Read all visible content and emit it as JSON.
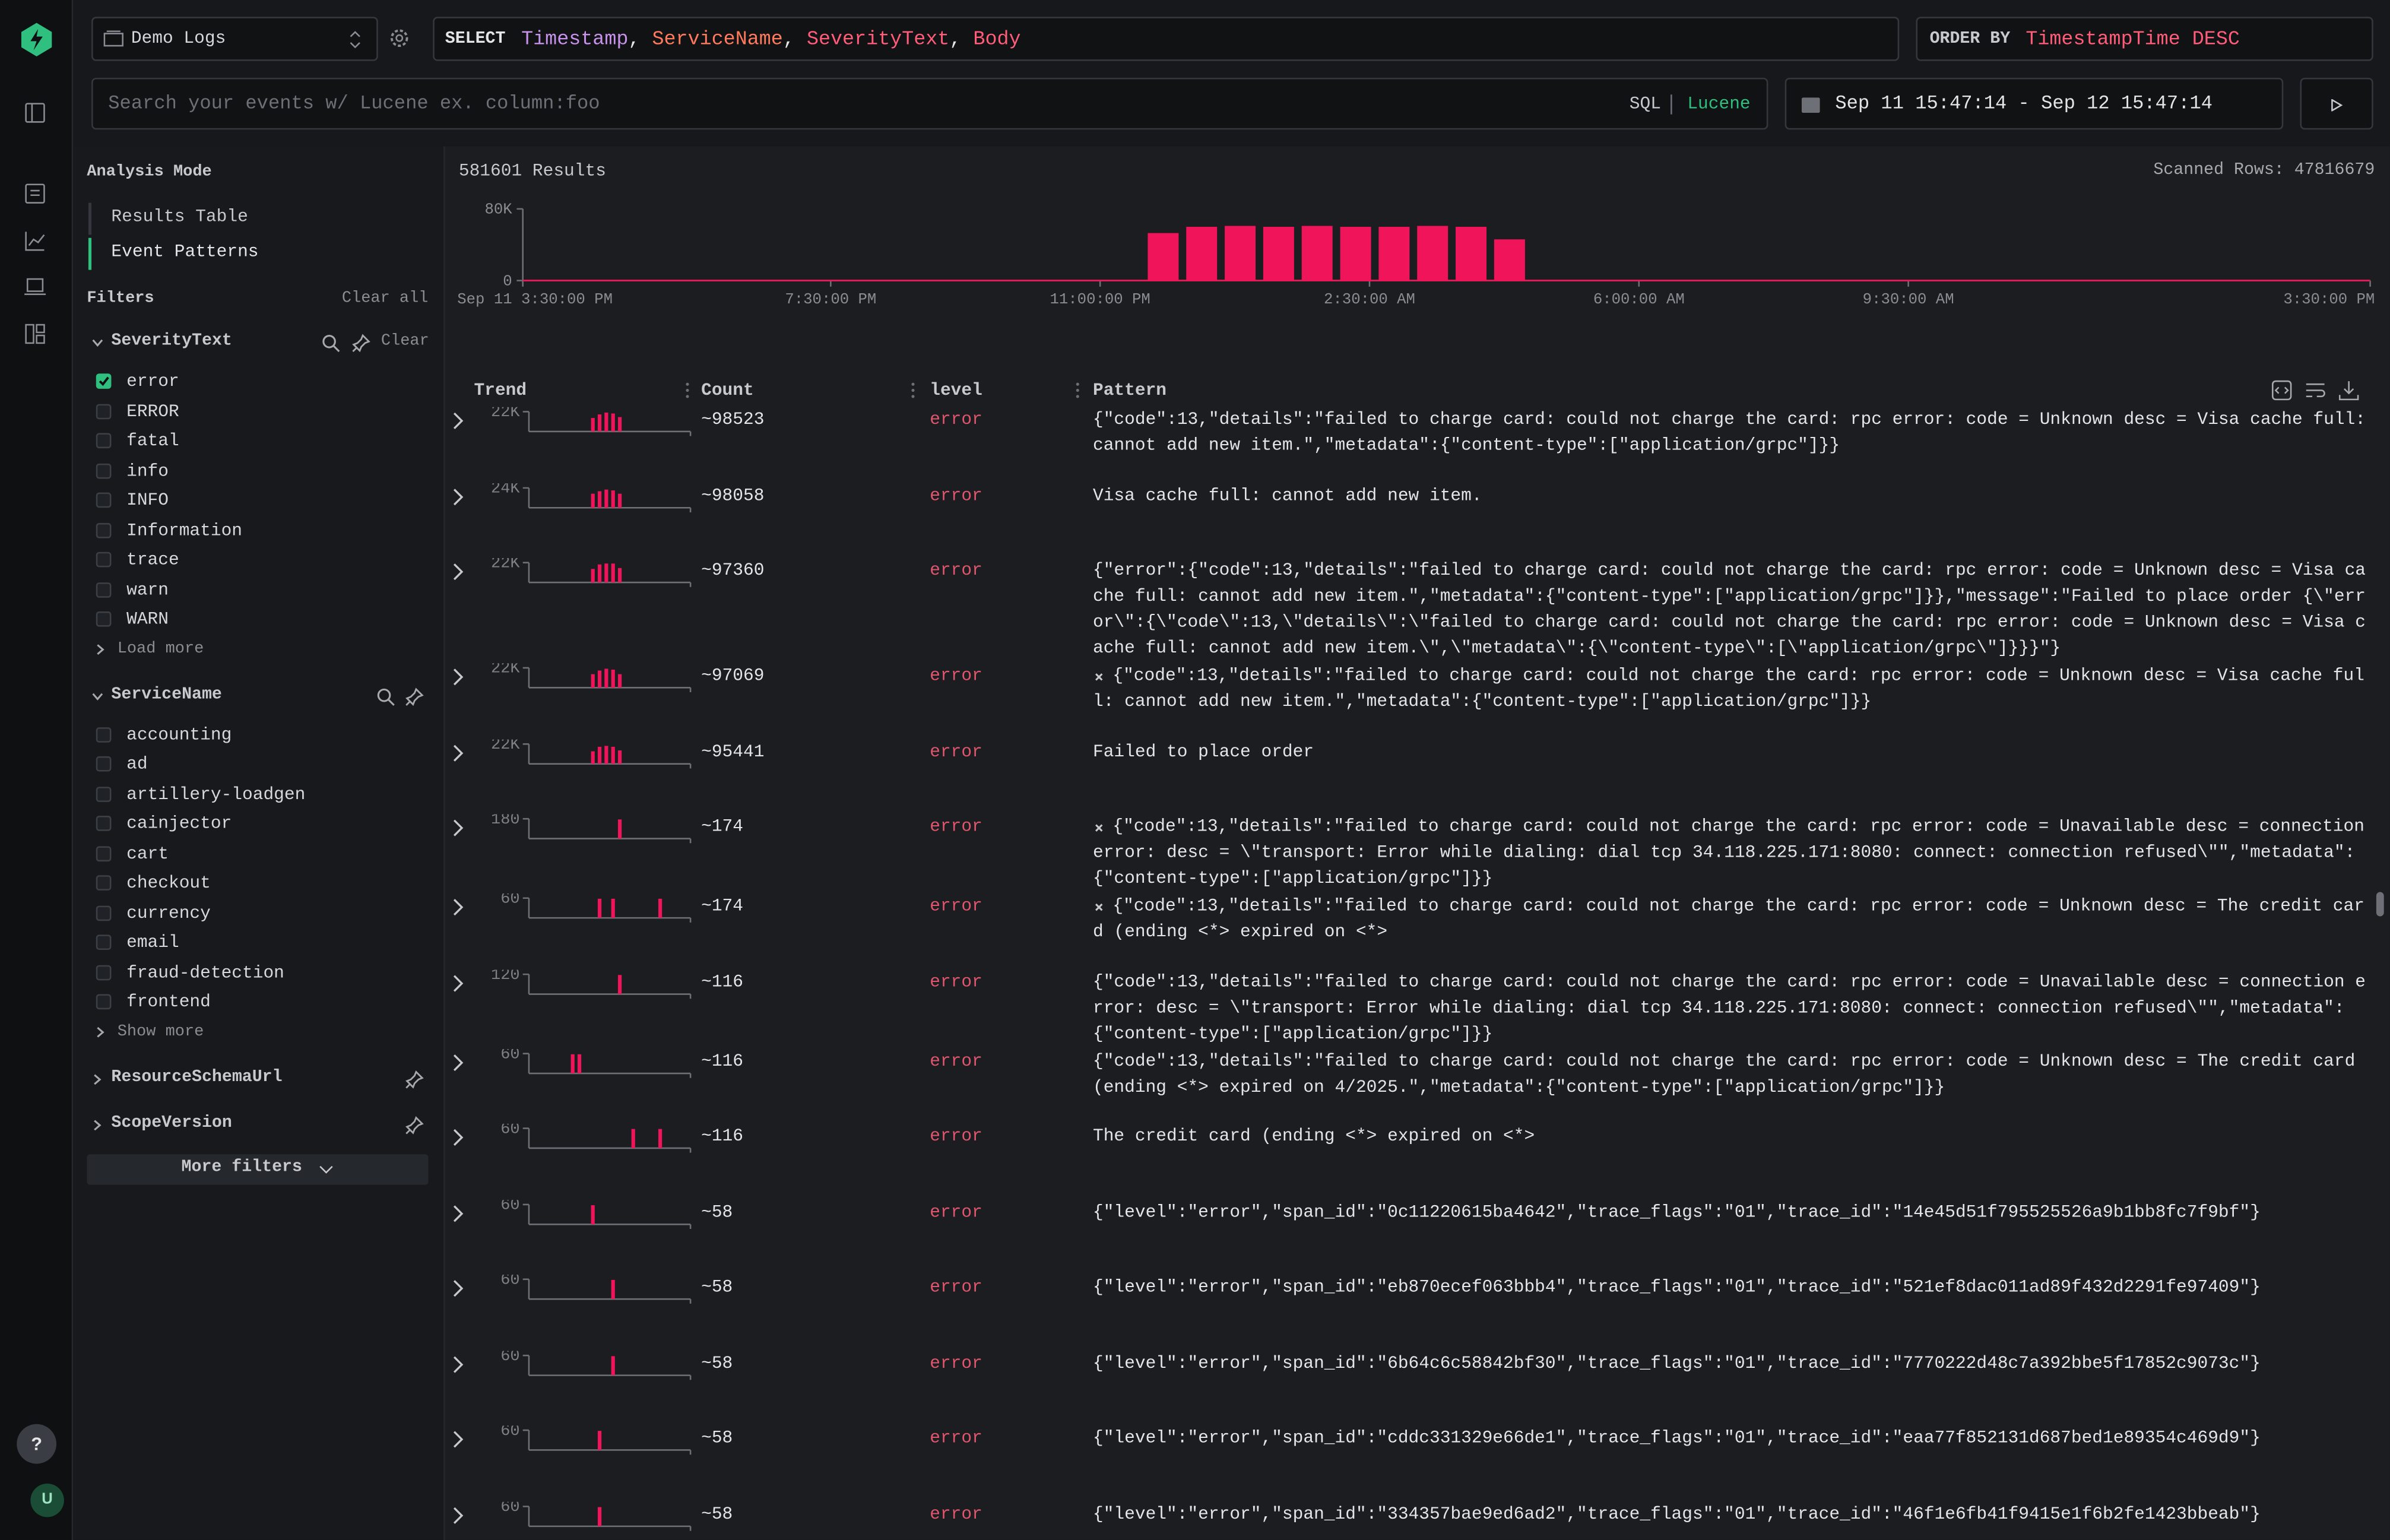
{
  "header": {
    "source": "Demo Logs",
    "select_keyword": "SELECT",
    "select_fields": [
      "Timestamp",
      "ServiceName",
      "SeverityText",
      "Body"
    ],
    "select_separator": ", ",
    "order_keyword": "ORDER BY",
    "order_value": "TimestampTime DESC",
    "search_placeholder": "Search your events w/ Lucene ex. column:foo",
    "query_modes": [
      "SQL",
      "Lucene"
    ],
    "active_query_mode": 1,
    "date_range": "Sep 11 15:47:14 - Sep 12 15:47:14"
  },
  "rail": {
    "help": "?",
    "avatar": "U"
  },
  "sidebar": {
    "analysis_title": "Analysis Mode",
    "modes": [
      "Results Table",
      "Event Patterns"
    ],
    "active_mode": 1,
    "filters_title": "Filters",
    "clear_all": "Clear all",
    "groups": [
      {
        "name": "SeverityText",
        "clear": "Clear",
        "checked": [
          0
        ],
        "values": [
          "error",
          "ERROR",
          "fatal",
          "info",
          "INFO",
          "Information",
          "trace",
          "warn",
          "WARN"
        ],
        "more": "Load more"
      },
      {
        "name": "ServiceName",
        "checked": [],
        "values": [
          "accounting",
          "ad",
          "artillery-loadgen",
          "cainjector",
          "cart",
          "checkout",
          "currency",
          "email",
          "fraud-detection",
          "frontend"
        ],
        "more": "Show more"
      },
      {
        "name": "ResourceSchemaUrl"
      },
      {
        "name": "ScopeVersion"
      }
    ],
    "more_filters": "More filters"
  },
  "results": {
    "count_label": "581601 Results",
    "scanned": "Scanned Rows: 47816679"
  },
  "chart_data": {
    "type": "bar",
    "color": "#f0145a",
    "values": [
      0,
      0,
      0,
      0,
      0,
      0,
      0,
      0,
      0,
      0,
      0,
      0,
      0,
      0,
      0,
      0,
      53000,
      60000,
      61000,
      60000,
      61000,
      60000,
      60000,
      61000,
      60000,
      46000,
      0,
      0,
      0,
      0,
      0,
      0,
      0,
      0,
      0,
      0,
      0,
      0,
      0,
      0,
      0,
      0,
      0,
      0,
      0,
      0,
      0,
      0
    ],
    "ylim": [
      0,
      80000
    ],
    "yticks": [
      0,
      {
        "value": 80000,
        "label": "80K"
      }
    ],
    "xlim": [
      0,
      48
    ],
    "xticks": [
      {
        "value": 0,
        "label": "Sep 11 3:30:00 PM"
      },
      {
        "value": 8,
        "label": "7:30:00 PM"
      },
      {
        "value": 15,
        "label": "11:00:00 PM"
      },
      {
        "value": 22,
        "label": "2:30:00 AM"
      },
      {
        "value": 29,
        "label": "6:00:00 AM"
      },
      {
        "value": 36,
        "label": "9:30:00 AM"
      },
      {
        "value": 48,
        "label": "3:30:00 PM"
      }
    ]
  },
  "table": {
    "columns": [
      "Trend",
      "Count",
      "level",
      "Pattern"
    ],
    "rows": [
      {
        "trend": {
          "ylim": [
            0,
            22000
          ],
          "yticks": [
            {
              "value": 22000,
              "label": "22K"
            }
          ],
          "values": [
            0,
            0,
            0,
            0,
            0,
            0,
            0,
            0,
            0,
            15000,
            19000,
            21000,
            20000,
            16000,
            0,
            0,
            0,
            0,
            0,
            0,
            0,
            0,
            0,
            0
          ]
        },
        "count": "~98523",
        "level": "error",
        "marked": false,
        "pattern": "{\"code\":13,\"details\":\"failed to charge card: could not charge the card: rpc error: code = Unknown desc = Visa cache full: cannot add new item.\",\"metadata\":{\"content-type\":[\"application/grpc\"]}}"
      },
      {
        "trend": {
          "ylim": [
            0,
            24000
          ],
          "yticks": [
            {
              "value": 24000,
              "label": "24K"
            }
          ],
          "values": [
            0,
            0,
            0,
            0,
            0,
            0,
            0,
            0,
            0,
            17000,
            20000,
            22000,
            21000,
            17000,
            0,
            0,
            0,
            0,
            0,
            0,
            0,
            0,
            0,
            0
          ]
        },
        "count": "~98058",
        "level": "error",
        "marked": false,
        "pattern": "Visa cache full: cannot add new item."
      },
      {
        "trend": {
          "ylim": [
            0,
            22000
          ],
          "yticks": [
            {
              "value": 22000,
              "label": "22K"
            }
          ],
          "values": [
            0,
            0,
            0,
            0,
            0,
            0,
            0,
            0,
            0,
            15000,
            20000,
            21000,
            21000,
            16000,
            0,
            0,
            0,
            0,
            0,
            0,
            0,
            0,
            0,
            0
          ]
        },
        "count": "~97360",
        "level": "error",
        "marked": false,
        "pattern": "{\"error\":{\"code\":13,\"details\":\"failed to charge card: could not charge the card: rpc error: code = Unknown desc = Visa cache full: cannot add new item.\",\"metadata\":{\"content-type\":[\"application/grpc\"]}},\"message\":\"Failed to place order {\\\"error\\\":{\\\"code\\\":13,\\\"details\\\":\\\"failed to charge card: could not charge the card: rpc error: code = Unknown desc = Visa cache full: cannot add new item.\\\",\\\"metadata\\\":{\\\"content-type\\\":[\\\"application/grpc\\\"]}}}\"}"
      },
      {
        "trend": {
          "ylim": [
            0,
            22000
          ],
          "yticks": [
            {
              "value": 22000,
              "label": "22K"
            }
          ],
          "values": [
            0,
            0,
            0,
            0,
            0,
            0,
            0,
            0,
            0,
            15000,
            19000,
            21000,
            20000,
            15000,
            0,
            0,
            0,
            0,
            0,
            0,
            0,
            0,
            0,
            0
          ]
        },
        "count": "~97069",
        "level": "error",
        "marked": true,
        "pattern": "{\"code\":13,\"details\":\"failed to charge card: could not charge the card: rpc error: code = Unknown desc = Visa cache full: cannot add new item.\",\"metadata\":{\"content-type\":[\"application/grpc\"]}}"
      },
      {
        "trend": {
          "ylim": [
            0,
            22000
          ],
          "yticks": [
            {
              "value": 22000,
              "label": "22K"
            }
          ],
          "values": [
            0,
            0,
            0,
            0,
            0,
            0,
            0,
            0,
            0,
            14000,
            19000,
            20000,
            19000,
            15000,
            0,
            0,
            0,
            0,
            0,
            0,
            0,
            0,
            0,
            0
          ]
        },
        "count": "~95441",
        "level": "error",
        "marked": false,
        "pattern": "Failed to place order"
      },
      {
        "trend": {
          "ylim": [
            0,
            180
          ],
          "yticks": [
            180
          ],
          "values": [
            0,
            0,
            0,
            0,
            0,
            0,
            0,
            0,
            0,
            0,
            0,
            0,
            0,
            174,
            0,
            0,
            0,
            0,
            0,
            0,
            0,
            0,
            0,
            0
          ]
        },
        "count": "~174",
        "level": "error",
        "marked": true,
        "pattern": "{\"code\":13,\"details\":\"failed to charge card: could not charge the card: rpc error: code = Unavailable desc = connection error: desc = \\\"transport: Error while dialing: dial tcp 34.118.225.171:8080: connect: connection refused\\\"\",\"metadata\":{\"content-type\":[\"application/grpc\"]}}"
      },
      {
        "trend": {
          "ylim": [
            0,
            60
          ],
          "yticks": [
            60
          ],
          "values": [
            0,
            0,
            0,
            0,
            0,
            0,
            0,
            0,
            0,
            0,
            58,
            0,
            58,
            0,
            0,
            0,
            0,
            0,
            0,
            58,
            0,
            0,
            0,
            0
          ]
        },
        "count": "~174",
        "level": "error",
        "marked": true,
        "pattern": "{\"code\":13,\"details\":\"failed to charge card: could not charge the card: rpc error: code = Unknown desc = The credit card (ending <*> expired on <*>"
      },
      {
        "trend": {
          "ylim": [
            0,
            120
          ],
          "yticks": [
            120
          ],
          "values": [
            0,
            0,
            0,
            0,
            0,
            0,
            0,
            0,
            0,
            0,
            0,
            0,
            0,
            116,
            0,
            0,
            0,
            0,
            0,
            0,
            0,
            0,
            0,
            0
          ]
        },
        "count": "~116",
        "level": "error",
        "marked": false,
        "pattern": "{\"code\":13,\"details\":\"failed to charge card: could not charge the card: rpc error: code = Unavailable desc = connection error: desc = \\\"transport: Error while dialing: dial tcp 34.118.225.171:8080: connect: connection refused\\\"\",\"metadata\":{\"content-type\":[\"application/grpc\"]}}"
      },
      {
        "trend": {
          "ylim": [
            0,
            60
          ],
          "yticks": [
            60
          ],
          "values": [
            0,
            0,
            0,
            0,
            0,
            0,
            58,
            58,
            0,
            0,
            0,
            0,
            0,
            0,
            0,
            0,
            0,
            0,
            0,
            0,
            0,
            0,
            0,
            0
          ]
        },
        "count": "~116",
        "level": "error",
        "marked": false,
        "pattern": "{\"code\":13,\"details\":\"failed to charge card: could not charge the card: rpc error: code = Unknown desc = The credit card (ending <*> expired on 4/2025.\",\"metadata\":{\"content-type\":[\"application/grpc\"]}}"
      },
      {
        "trend": {
          "ylim": [
            0,
            60
          ],
          "yticks": [
            60
          ],
          "values": [
            0,
            0,
            0,
            0,
            0,
            0,
            0,
            0,
            0,
            0,
            0,
            0,
            0,
            0,
            0,
            58,
            0,
            0,
            0,
            58,
            0,
            0,
            0,
            0
          ]
        },
        "count": "~116",
        "level": "error",
        "marked": false,
        "pattern": "The credit card (ending <*> expired on <*>"
      },
      {
        "trend": {
          "ylim": [
            0,
            60
          ],
          "yticks": [
            60
          ],
          "values": [
            0,
            0,
            0,
            0,
            0,
            0,
            0,
            0,
            0,
            58,
            0,
            0,
            0,
            0,
            0,
            0,
            0,
            0,
            0,
            0,
            0,
            0,
            0,
            0
          ]
        },
        "count": "~58",
        "level": "error",
        "marked": false,
        "pattern": "{\"level\":\"error\",\"span_id\":\"0c11220615ba4642\",\"trace_flags\":\"01\",\"trace_id\":\"14e45d51f795525526a9b1bb8fc7f9bf\"}"
      },
      {
        "trend": {
          "ylim": [
            0,
            60
          ],
          "yticks": [
            60
          ],
          "values": [
            0,
            0,
            0,
            0,
            0,
            0,
            0,
            0,
            0,
            0,
            0,
            0,
            58,
            0,
            0,
            0,
            0,
            0,
            0,
            0,
            0,
            0,
            0,
            0
          ]
        },
        "count": "~58",
        "level": "error",
        "marked": false,
        "pattern": "{\"level\":\"error\",\"span_id\":\"eb870ecef063bbb4\",\"trace_flags\":\"01\",\"trace_id\":\"521ef8dac011ad89f432d2291fe97409\"}"
      },
      {
        "trend": {
          "ylim": [
            0,
            60
          ],
          "yticks": [
            60
          ],
          "values": [
            0,
            0,
            0,
            0,
            0,
            0,
            0,
            0,
            0,
            0,
            0,
            0,
            58,
            0,
            0,
            0,
            0,
            0,
            0,
            0,
            0,
            0,
            0,
            0
          ]
        },
        "count": "~58",
        "level": "error",
        "marked": false,
        "pattern": "{\"level\":\"error\",\"span_id\":\"6b64c6c58842bf30\",\"trace_flags\":\"01\",\"trace_id\":\"7770222d48c7a392bbe5f17852c9073c\"}"
      },
      {
        "trend": {
          "ylim": [
            0,
            60
          ],
          "yticks": [
            60
          ],
          "values": [
            0,
            0,
            0,
            0,
            0,
            0,
            0,
            0,
            0,
            0,
            58,
            0,
            0,
            0,
            0,
            0,
            0,
            0,
            0,
            0,
            0,
            0,
            0,
            0
          ]
        },
        "count": "~58",
        "level": "error",
        "marked": false,
        "pattern": "{\"level\":\"error\",\"span_id\":\"cddc331329e66de1\",\"trace_flags\":\"01\",\"trace_id\":\"eaa77f852131d687bed1e89354c469d9\"}"
      },
      {
        "trend": {
          "ylim": [
            0,
            60
          ],
          "yticks": [
            60
          ],
          "values": [
            0,
            0,
            0,
            0,
            0,
            0,
            0,
            0,
            0,
            0,
            58,
            0,
            0,
            0,
            0,
            0,
            0,
            0,
            0,
            0,
            0,
            0,
            0,
            0
          ]
        },
        "count": "~58",
        "level": "error",
        "marked": false,
        "pattern": "{\"level\":\"error\",\"span_id\":\"334357bae9ed6ad2\",\"trace_flags\":\"01\",\"trace_id\":\"46f1e6fb41f9415e1f6b2fe1423bbeab\"}"
      }
    ]
  }
}
